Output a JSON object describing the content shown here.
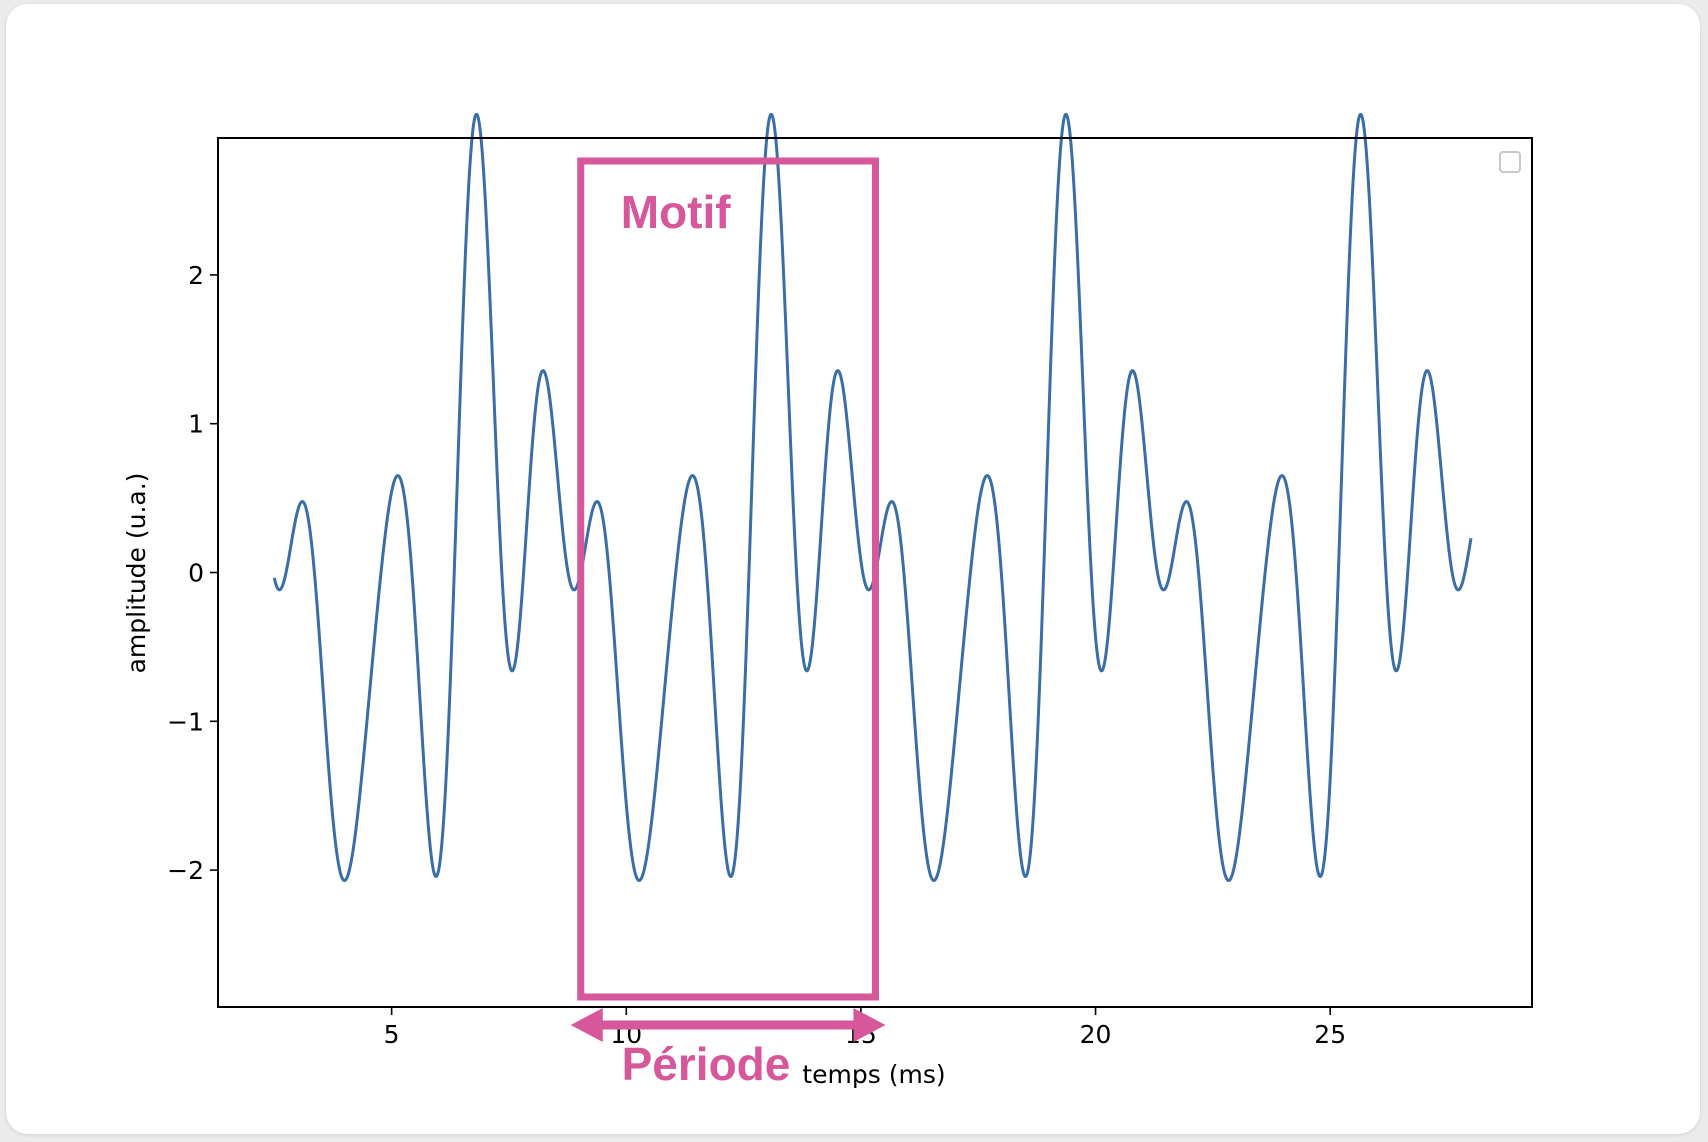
{
  "chart_data": {
    "type": "line",
    "xlabel": "temps (ms)",
    "ylabel": "amplitude (u.a.)",
    "xlim": [
      1.3,
      29.3
    ],
    "ylim": [
      -2.92,
      2.92
    ],
    "xticks": [
      5,
      10,
      15,
      20,
      25
    ],
    "yticks": [
      -2,
      -1,
      0,
      1,
      2
    ],
    "xtick_labels": [
      "5",
      "10",
      "15",
      "20",
      "25"
    ],
    "ytick_labels": [
      "−2",
      "−1",
      "0",
      "1",
      "2"
    ],
    "grid": false,
    "legend": "top-right (empty)",
    "series": [
      {
        "period_ms": 6.28,
        "x_range": [
          2.5,
          28.0
        ],
        "color": "#3a6ea5",
        "formula": "-sin(2πt/T) + cos(3·2πt/T) - cos(4·2πt/T) + 0.5·sin(5·2πt/T), t = x - 9.03"
      }
    ],
    "annotations": {
      "motif_label": "Motif",
      "periode_label": "Période",
      "motif_box_x": [
        9.03,
        15.31
      ],
      "periode_arrow_x": [
        9.03,
        15.31
      ],
      "color": "#d6579a"
    }
  }
}
